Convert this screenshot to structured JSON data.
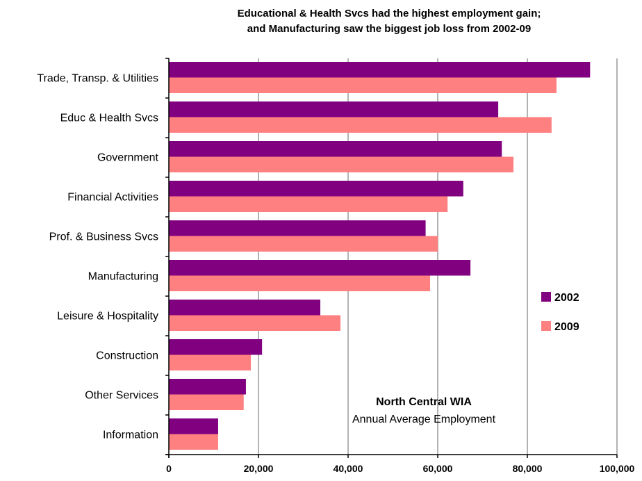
{
  "chart_data": {
    "type": "bar",
    "orientation": "horizontal",
    "title_lines": [
      "Educational & Health Svcs had the highest employment gain;",
      "and Manufacturing saw the biggest job loss from 2002-09"
    ],
    "categories": [
      "Trade, Transp. & Utilities",
      "Educ & Health Svcs",
      "Government",
      "Financial Activities",
      "Prof. & Business Svcs",
      "Manufacturing",
      "Leisure & Hospitality",
      "Construction",
      "Other Services",
      "Information"
    ],
    "series": [
      {
        "name": "2002",
        "color": "#800080",
        "values": [
          94000,
          73500,
          74300,
          65700,
          57300,
          67300,
          33800,
          20800,
          17200,
          11000
        ]
      },
      {
        "name": "2009",
        "color": "#ff8080",
        "values": [
          86500,
          85400,
          76900,
          62200,
          60000,
          58300,
          38300,
          18300,
          16700,
          11000
        ]
      }
    ],
    "xlim": [
      0,
      100000
    ],
    "x_ticks": [
      0,
      20000,
      40000,
      60000,
      80000,
      100000
    ],
    "x_tick_labels": [
      "0",
      "20,000",
      "40,000",
      "60,000",
      "80,000",
      "100,000"
    ],
    "grid": "vertical",
    "legend_position": "right",
    "annotation": {
      "title": "North Central WIA",
      "subtitle": "Annual Average Employment"
    }
  }
}
